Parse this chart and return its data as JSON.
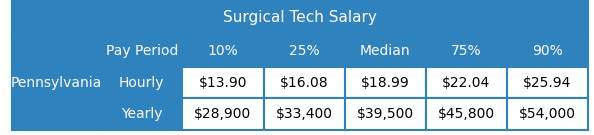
{
  "title": "Surgical Tech Salary",
  "header_cols": [
    "Pay Period",
    "10%",
    "25%",
    "Median",
    "75%",
    "90%"
  ],
  "row_label": "Pennsylvania",
  "rows": [
    [
      "Hourly",
      "$13.90",
      "$16.08",
      "$18.99",
      "$22.04",
      "$25.94"
    ],
    [
      "Yearly",
      "$28,900",
      "$33,400",
      "$39,500",
      "$45,800",
      "$54,000"
    ]
  ],
  "blue_bg": "#2E82BE",
  "white_bg": "#FFFFFF",
  "header_text_color": "#FFFFFF",
  "data_text_color": "#000000",
  "border_color": "#2E82BE",
  "title_fontsize": 11,
  "header_fontsize": 10,
  "data_fontsize": 10
}
